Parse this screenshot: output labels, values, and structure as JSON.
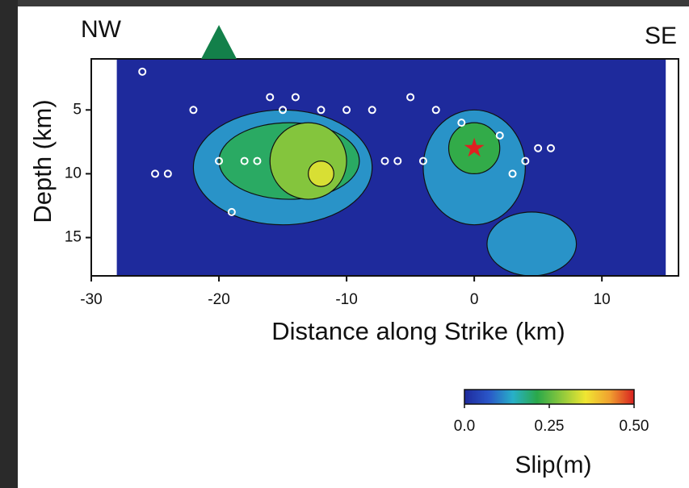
{
  "chart_data": {
    "type": "slip_map",
    "corner_labels": [
      "NW",
      "SE"
    ],
    "xlabel": "Distance along Strike (km)",
    "ylabel": "Depth (km)",
    "xlim": [
      -30,
      16
    ],
    "xticks": [
      -30,
      -20,
      -10,
      0,
      10
    ],
    "ylim": [
      1,
      18
    ],
    "yticks": [
      5,
      10,
      15
    ],
    "fault_x": [
      -28,
      15
    ],
    "triangle_x": -20,
    "triangle_color": "#13804a",
    "hypocenter": {
      "x": 0,
      "depth": 8,
      "color": "#e02020"
    },
    "colormap": [
      "#1e2a9c",
      "#2a56c8",
      "#28b0c8",
      "#2aa84a",
      "#8cc83c",
      "#f0e632",
      "#f0a030",
      "#d82020"
    ],
    "clim": [
      0,
      0.5
    ],
    "cticks": [
      {
        "value": 0,
        "label": "0.0"
      },
      0.25,
      {
        "value": 0.5,
        "label": "0.50"
      }
    ],
    "clabel": "Slip(m)",
    "slip_patches": [
      {
        "x": [
          -22,
          -8
        ],
        "depth": [
          5,
          14
        ],
        "slip": 0.12
      },
      {
        "x": [
          -4,
          4
        ],
        "depth": [
          5,
          14
        ],
        "slip": 0.12
      },
      {
        "x": [
          1,
          8
        ],
        "depth": [
          13,
          18
        ],
        "slip": 0.12
      },
      {
        "x": [
          -20,
          -9
        ],
        "depth": [
          6,
          12
        ],
        "slip": 0.2
      },
      {
        "x": [
          -2,
          2
        ],
        "depth": [
          6,
          10
        ],
        "slip": 0.22
      },
      {
        "x": [
          -16,
          -10
        ],
        "depth": [
          6,
          12
        ],
        "slip": 0.28
      },
      {
        "x": [
          -13,
          -11
        ],
        "depth": [
          9,
          11
        ],
        "slip": 0.34
      }
    ],
    "aftershocks": {
      "x": [
        -26,
        -24,
        -22,
        -20,
        -18,
        -16,
        -15,
        -14,
        -12,
        -10,
        -8,
        -6,
        -5,
        -4,
        -3,
        -1,
        2,
        4,
        5,
        -25,
        -19,
        -17,
        -7,
        3,
        6
      ],
      "depth": [
        2,
        10,
        5,
        9,
        9,
        4,
        5,
        4,
        5,
        5,
        5,
        9,
        4,
        9,
        5,
        6,
        7,
        9,
        8,
        10,
        13,
        9,
        9,
        10,
        8
      ]
    }
  }
}
